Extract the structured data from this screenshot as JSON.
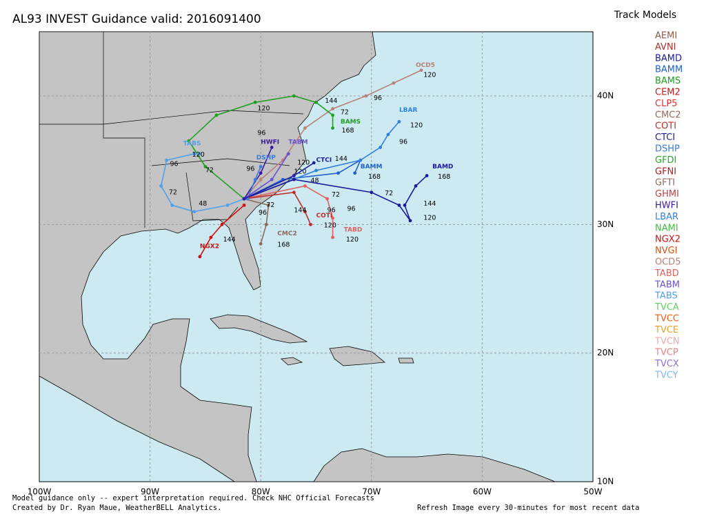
{
  "header": {
    "title": "AL93 INVEST Guidance valid: 2016091400",
    "legend_title": "Track Models"
  },
  "legend": [
    {
      "name": "AEMI",
      "color": "#8b5a4a"
    },
    {
      "name": "AVNI",
      "color": "#b03030"
    },
    {
      "name": "BAMD",
      "color": "#1a1a9a"
    },
    {
      "name": "BAMM",
      "color": "#2060d0"
    },
    {
      "name": "BAMS",
      "color": "#20a020"
    },
    {
      "name": "CEM2",
      "color": "#c01818"
    },
    {
      "name": "CLP5",
      "color": "#e03030"
    },
    {
      "name": "CMC2",
      "color": "#8a6a5a"
    },
    {
      "name": "COTI",
      "color": "#c02a2a"
    },
    {
      "name": "CTCI",
      "color": "#2020a0"
    },
    {
      "name": "DSHP",
      "color": "#3a7ad8"
    },
    {
      "name": "GFDI",
      "color": "#28a828"
    },
    {
      "name": "GFNI",
      "color": "#b01a1a"
    },
    {
      "name": "GFTI",
      "color": "#9a6a60"
    },
    {
      "name": "GHMI",
      "color": "#c04040"
    },
    {
      "name": "HWFI",
      "color": "#3a1aa0"
    },
    {
      "name": "LBAR",
      "color": "#3080e0"
    },
    {
      "name": "NAMI",
      "color": "#40c040"
    },
    {
      "name": "NGX2",
      "color": "#d01010"
    },
    {
      "name": "NVGI",
      "color": "#e05010"
    },
    {
      "name": "OCD5",
      "color": "#b88078"
    },
    {
      "name": "TABD",
      "color": "#e06060"
    },
    {
      "name": "TABM",
      "color": "#6a50d0"
    },
    {
      "name": "TABS",
      "color": "#50a0e8"
    },
    {
      "name": "TVCA",
      "color": "#60d060"
    },
    {
      "name": "TVCC",
      "color": "#f05a10"
    },
    {
      "name": "TVCE",
      "color": "#f0a020"
    },
    {
      "name": "TVCN",
      "color": "#f0a8a8"
    },
    {
      "name": "TVCP",
      "color": "#f08080"
    },
    {
      "name": "TVCX",
      "color": "#9070e0"
    },
    {
      "name": "TVCY",
      "color": "#80b8f0"
    }
  ],
  "map": {
    "lon_ticks": [
      {
        "value": -100,
        "label": "100W"
      },
      {
        "value": -90,
        "label": "90W"
      },
      {
        "value": -80,
        "label": "80W"
      },
      {
        "value": -70,
        "label": "70W"
      },
      {
        "value": -60,
        "label": "60W"
      },
      {
        "value": -50,
        "label": "50W"
      }
    ],
    "lat_ticks": [
      {
        "value": 10,
        "label": "10N"
      },
      {
        "value": 20,
        "label": "20N"
      },
      {
        "value": 30,
        "label": "30N"
      },
      {
        "value": 40,
        "label": "40N"
      }
    ],
    "tracks": [
      {
        "name": "OCD5",
        "color": "#b88078",
        "lon": [
          -81.5,
          -80,
          -78,
          -76,
          -73.5,
          -70.5,
          -68,
          -65.5
        ],
        "lat": [
          32,
          33.5,
          35,
          37.5,
          39,
          40,
          41,
          42
        ],
        "label_lon": -66,
        "label_lat": 42.4,
        "hours": [
          {
            "hour": 96,
            "lon": -69.8,
            "lat": 39.8
          },
          {
            "hour": 120,
            "lon": -65.3,
            "lat": 41.6
          }
        ]
      },
      {
        "name": "BAMS",
        "color": "#20a020",
        "lon": [
          -81.5,
          -85,
          -86.5,
          -84,
          -80.5,
          -77,
          -75,
          -73.5,
          -73.5
        ],
        "lat": [
          32,
          34.5,
          36.5,
          38.5,
          39.5,
          40,
          39.5,
          38.5,
          37.5
        ],
        "label_lon": -72.8,
        "label_lat": 38,
        "hours": [
          {
            "hour": 120,
            "lon": -80.3,
            "lat": 39
          },
          {
            "hour": 144,
            "lon": -74.2,
            "lat": 39.6
          },
          {
            "hour": 72,
            "lon": -72.8,
            "lat": 38.7
          },
          {
            "hour": 168,
            "lon": -72.7,
            "lat": 37.3
          },
          {
            "hour": 96,
            "lon": -80.3,
            "lat": 37.1
          }
        ]
      },
      {
        "name": "TABS",
        "color": "#50a0e8",
        "lon": [
          -81.5,
          -83,
          -86,
          -88,
          -89,
          -88.5,
          -86,
          -85.5
        ],
        "lat": [
          32,
          31.5,
          31,
          31.5,
          33,
          35,
          35.5,
          35.5
        ],
        "label_lon": -87,
        "label_lat": 36.3,
        "hours": [
          {
            "hour": 96,
            "lon": -88.2,
            "lat": 34.7
          },
          {
            "hour": 120,
            "lon": -86.2,
            "lat": 35.4
          },
          {
            "hour": 72,
            "lon": -85,
            "lat": 34.2
          },
          {
            "hour": 72,
            "lon": -88.3,
            "lat": 32.5
          },
          {
            "hour": 48,
            "lon": -85.6,
            "lat": 31.6
          }
        ]
      },
      {
        "name": "BAMM",
        "color": "#2060d0",
        "lon": [
          -81.5,
          -78,
          -73,
          -71,
          -71.5
        ],
        "lat": [
          32,
          33.5,
          34,
          35,
          34
        ],
        "label_lon": -71,
        "label_lat": 34.5,
        "hours": [
          {
            "hour": 144,
            "lon": -73.3,
            "lat": 35.1
          },
          {
            "hour": 168,
            "lon": -70.3,
            "lat": 33.7
          }
        ]
      },
      {
        "name": "LBAR",
        "color": "#3080e0",
        "lon": [
          -81.5,
          -75,
          -71,
          -69.2,
          -68.5,
          -67.5
        ],
        "lat": [
          32,
          34.2,
          35,
          36,
          37,
          38
        ],
        "label_lon": -67.5,
        "label_lat": 38.9,
        "hours": [
          {
            "hour": 96,
            "lon": -67.5,
            "lat": 36.4
          },
          {
            "hour": 120,
            "lon": -66.5,
            "lat": 37.7
          }
        ]
      },
      {
        "name": "BAMD",
        "color": "#1a1a9a",
        "lon": [
          -81.5,
          -77,
          -70,
          -67.5,
          -66.5,
          -67,
          -66,
          -65
        ],
        "lat": [
          32,
          33.5,
          32.5,
          31.5,
          30.3,
          31.5,
          33,
          33.8
        ],
        "label_lon": -64.5,
        "label_lat": 34.5,
        "hours": [
          {
            "hour": 72,
            "lon": -68.8,
            "lat": 32.4
          },
          {
            "hour": 144,
            "lon": -65.3,
            "lat": 31.6
          },
          {
            "hour": 168,
            "lon": -64,
            "lat": 33.7
          },
          {
            "hour": 120,
            "lon": -65.3,
            "lat": 30.5
          }
        ]
      },
      {
        "name": "TABD",
        "color": "#e06060",
        "lon": [
          -81.5,
          -76,
          -74,
          -73.5,
          -73.5
        ],
        "lat": [
          32,
          33,
          32,
          30.5,
          29
        ],
        "label_lon": -72.5,
        "label_lat": 29.6,
        "hours": [
          {
            "hour": 72,
            "lon": -73.6,
            "lat": 32.3
          },
          {
            "hour": 96,
            "lon": -72.2,
            "lat": 31.2
          },
          {
            "hour": 120,
            "lon": -72.3,
            "lat": 28.8
          }
        ]
      },
      {
        "name": "COTI",
        "color": "#c02a2a",
        "lon": [
          -81.5,
          -77,
          -76,
          -75.5
        ],
        "lat": [
          32,
          32.5,
          31,
          30
        ],
        "label_lon": -75,
        "label_lat": 30.7,
        "hours": [
          {
            "hour": 120,
            "lon": -74.3,
            "lat": 29.9
          },
          {
            "hour": 96,
            "lon": -74,
            "lat": 31.1
          },
          {
            "hour": 144,
            "lon": -77,
            "lat": 31.1
          }
        ]
      },
      {
        "name": "NGX2",
        "color": "#d01010",
        "lon": [
          -81.5,
          -83.5,
          -84.5,
          -85.5
        ],
        "lat": [
          31.5,
          30,
          29,
          27.5
        ],
        "label_lon": -85.5,
        "label_lat": 28.3,
        "hours": [
          {
            "hour": 144,
            "lon": -83.4,
            "lat": 28.8
          }
        ]
      },
      {
        "name": "CMC2",
        "color": "#8a6a5a",
        "lon": [
          -81.5,
          -79.3,
          -79.5,
          -80
        ],
        "lat": [
          32,
          31.5,
          30,
          28.5
        ],
        "label_lon": -78.5,
        "label_lat": 29.3,
        "hours": [
          {
            "hour": 168,
            "lon": -78.5,
            "lat": 28.4
          },
          {
            "hour": 96,
            "lon": -80.2,
            "lat": 30.9
          },
          {
            "hour": 72,
            "lon": -79.5,
            "lat": 31.5
          }
        ]
      },
      {
        "name": "HWFI",
        "color": "#3a1aa0",
        "lon": [
          -81.5,
          -80,
          -79
        ],
        "lat": [
          32,
          34,
          36
        ],
        "label_lon": -80,
        "label_lat": 36.4,
        "hours": [
          {
            "hour": 96,
            "lon": -81.3,
            "lat": 34.3
          }
        ]
      },
      {
        "name": "DSHP",
        "color": "#3a7ad8",
        "lon": [
          -81.2,
          -80.5,
          -80
        ],
        "lat": [
          32,
          33.5,
          34.5
        ],
        "label_lon": -80.4,
        "label_lat": 35.2,
        "hours": [
          {
            "hour": 120,
            "lon": -77,
            "lat": 34.1
          }
        ]
      },
      {
        "name": "TABM",
        "color": "#6a50d0",
        "lon": [
          -81.5,
          -79,
          -77.5
        ],
        "lat": [
          32,
          33.5,
          35.5
        ],
        "label_lon": -77.5,
        "label_lat": 36.4,
        "hours": [
          {
            "hour": 120,
            "lon": -76.7,
            "lat": 34.8
          }
        ]
      },
      {
        "name": "CTCI",
        "color": "#2020a0",
        "lon": [
          -81.5,
          -77,
          -75.2
        ],
        "lat": [
          32,
          33.8,
          34.8
        ],
        "label_lon": -75,
        "label_lat": 35,
        "hours": [
          {
            "hour": 48,
            "lon": -75.5,
            "lat": 33.4
          }
        ]
      }
    ]
  },
  "footer": {
    "line1": "Model guidance only -- expert interpretation required.",
    "line1b": "Check NHC Official Forecasts",
    "line2": "Created by Dr. Ryan Maue, WeatherBELL Analytics.",
    "line2b": "Refresh Image every 30-minutes for most recent data"
  }
}
